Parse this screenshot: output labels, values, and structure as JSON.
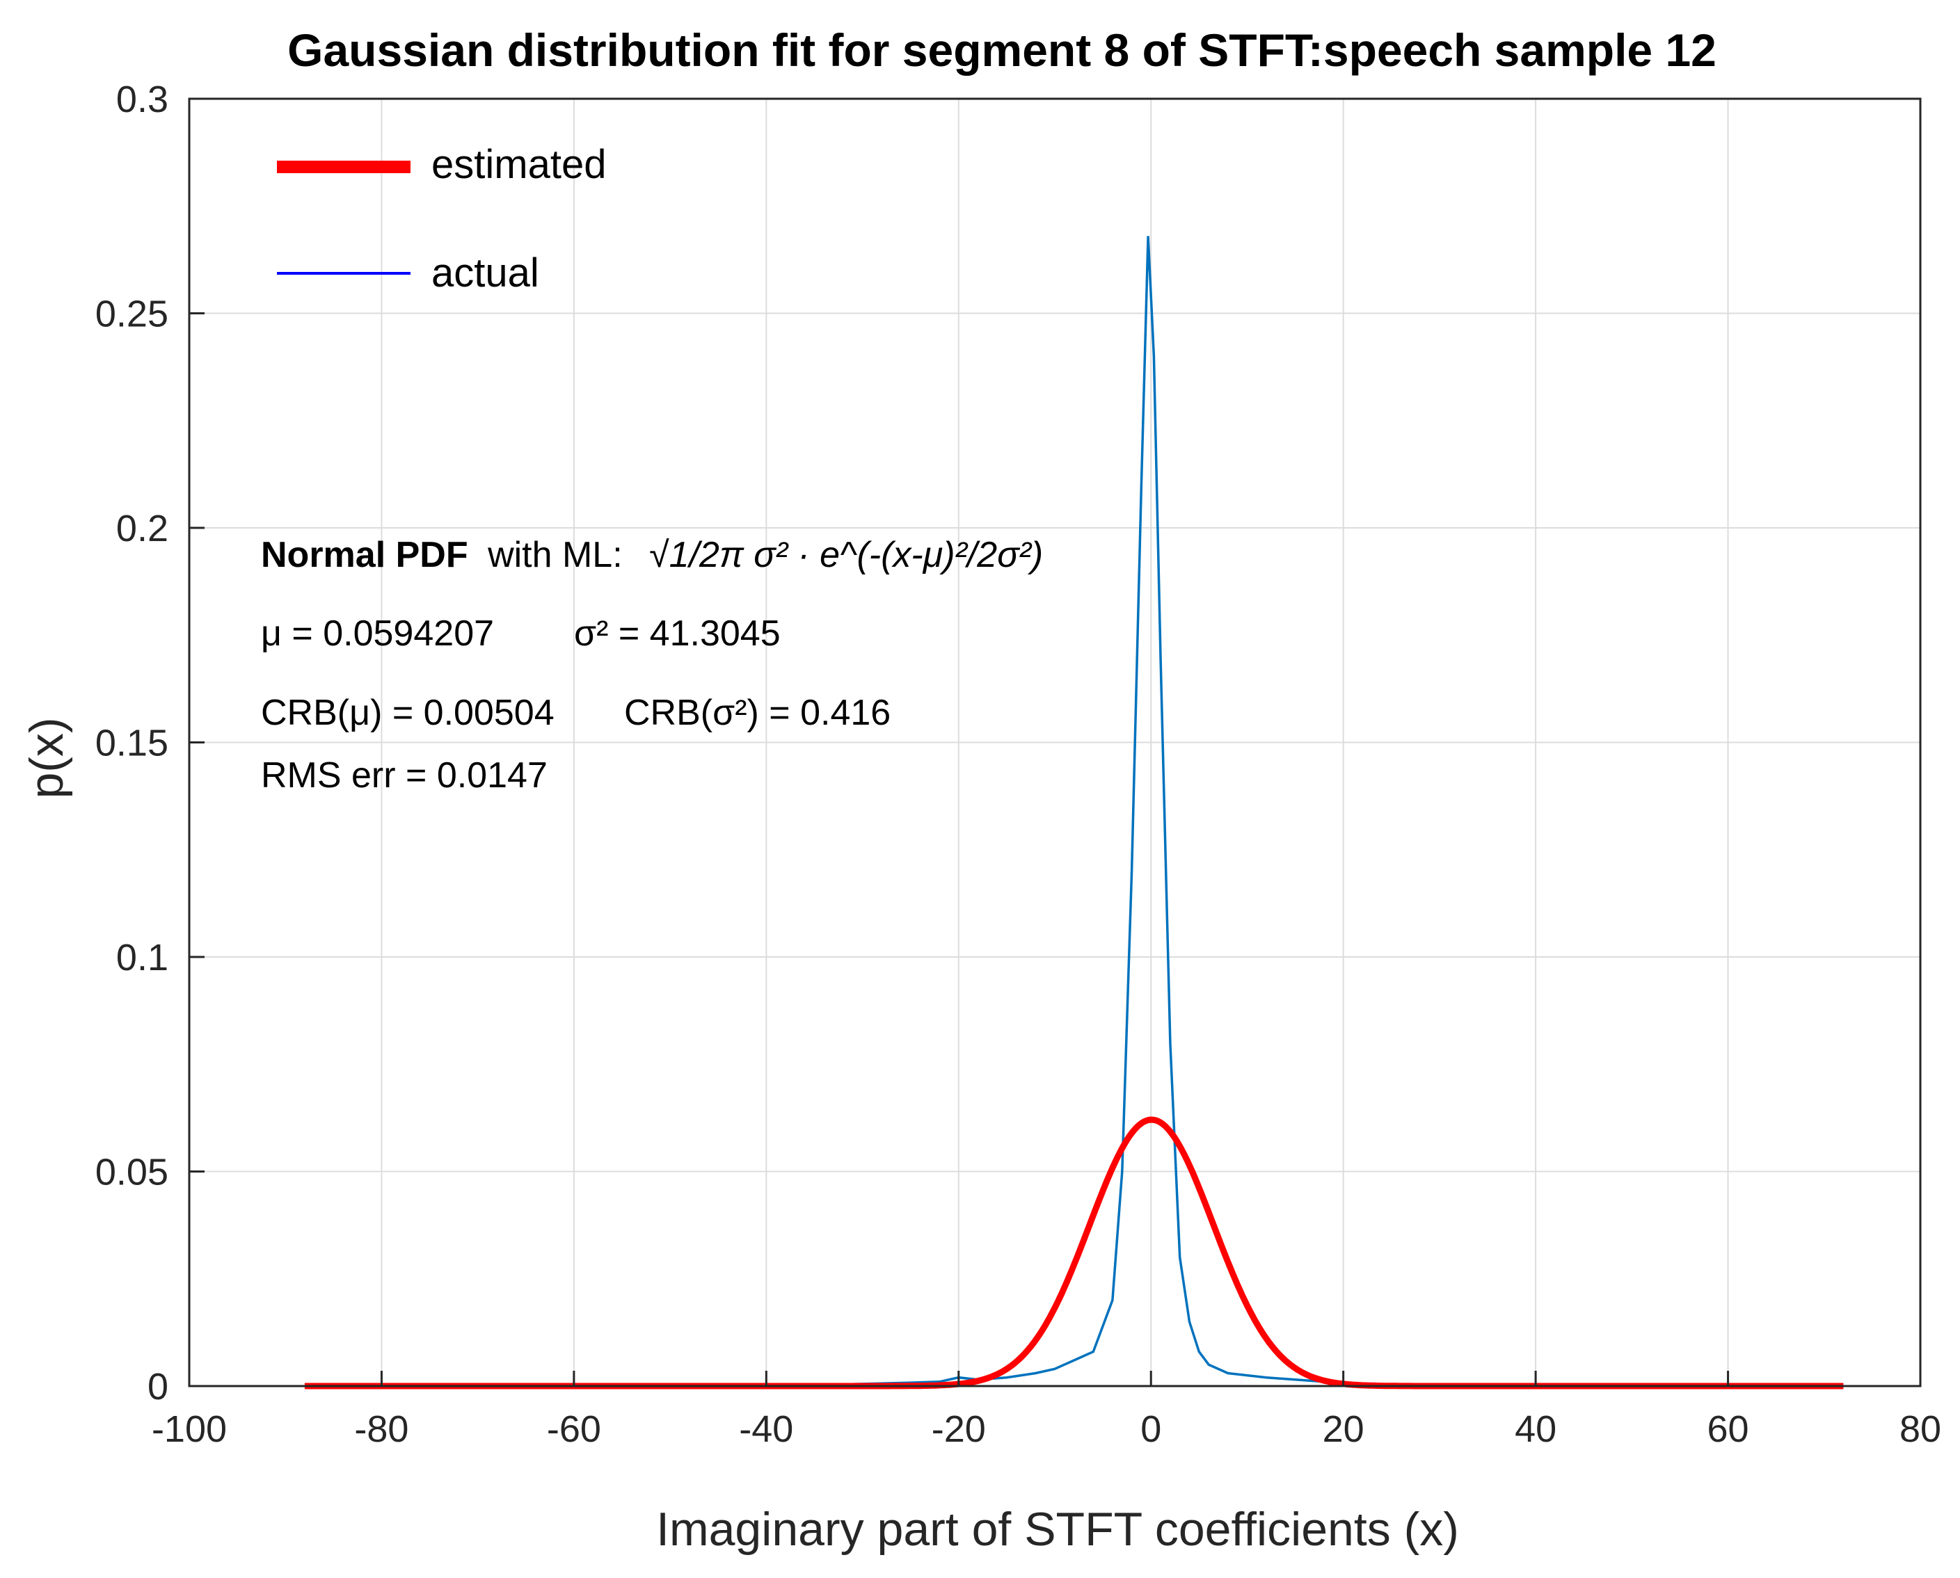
{
  "chart_data": {
    "type": "line",
    "title": "Gaussian distribution fit for segment 8 of STFT:speech sample 12",
    "xlabel": "Imaginary part of STFT coefficients (x)",
    "ylabel": "p(x)",
    "xlim": [
      -100,
      80
    ],
    "ylim": [
      0,
      0.3
    ],
    "xticks": [
      -100,
      -80,
      -60,
      -40,
      -20,
      0,
      20,
      40,
      60,
      80
    ],
    "xtick_labels": [
      "-100",
      "-80",
      "-60",
      "-40",
      "-20",
      "0",
      "20",
      "40",
      "60",
      "80"
    ],
    "yticks": [
      0,
      0.05,
      0.1,
      0.15,
      0.2,
      0.25,
      0.3
    ],
    "ytick_labels": [
      "0",
      "0.05",
      "0.1",
      "0.15",
      "0.2",
      "0.25",
      "0.3"
    ],
    "grid": true,
    "legend_position": "top-left",
    "series": [
      {
        "name": "estimated",
        "color": "#ff0000",
        "distribution": "normal",
        "mu": 0.0594207,
        "sigma2": 41.3045,
        "x_range": [
          -88,
          72
        ]
      },
      {
        "name": "actual",
        "color": "#0072bd",
        "x": [
          -88,
          -60,
          -40,
          -30,
          -25,
          -22,
          -20,
          -18,
          -15,
          -12,
          -10,
          -8,
          -6,
          -4,
          -3,
          -2,
          -1,
          -0.3,
          0.3,
          1,
          2,
          3,
          4,
          5,
          6,
          8,
          10,
          12,
          15,
          18,
          20,
          25,
          30,
          40,
          60,
          72
        ],
        "y": [
          0,
          0,
          0,
          0.0005,
          0.0008,
          0.001,
          0.002,
          0.0015,
          0.002,
          0.003,
          0.004,
          0.006,
          0.008,
          0.02,
          0.05,
          0.12,
          0.21,
          0.268,
          0.24,
          0.17,
          0.08,
          0.03,
          0.015,
          0.008,
          0.005,
          0.003,
          0.0025,
          0.002,
          0.0015,
          0.001,
          0.0005,
          0.0003,
          0.0002,
          0.0001,
          0,
          0
        ]
      }
    ],
    "legend": [
      {
        "label": "estimated",
        "color": "#ff0000"
      },
      {
        "label": "actual",
        "color": "#0000ff"
      }
    ],
    "annotations": {
      "normal_pdf_bold": "Normal PDF",
      "with_ml": "with ML:",
      "formula": "√1/2π σ² · e^(-(x-μ)²/2σ²)",
      "mu_line": "μ = 0.0594207",
      "sigma_line": "σ² = 41.3045",
      "crb_mu_line": "CRB(μ) = 0.00504",
      "crb_sigma_line": "CRB(σ²) = 0.416",
      "rms_line": "RMS err = 0.0147"
    }
  }
}
